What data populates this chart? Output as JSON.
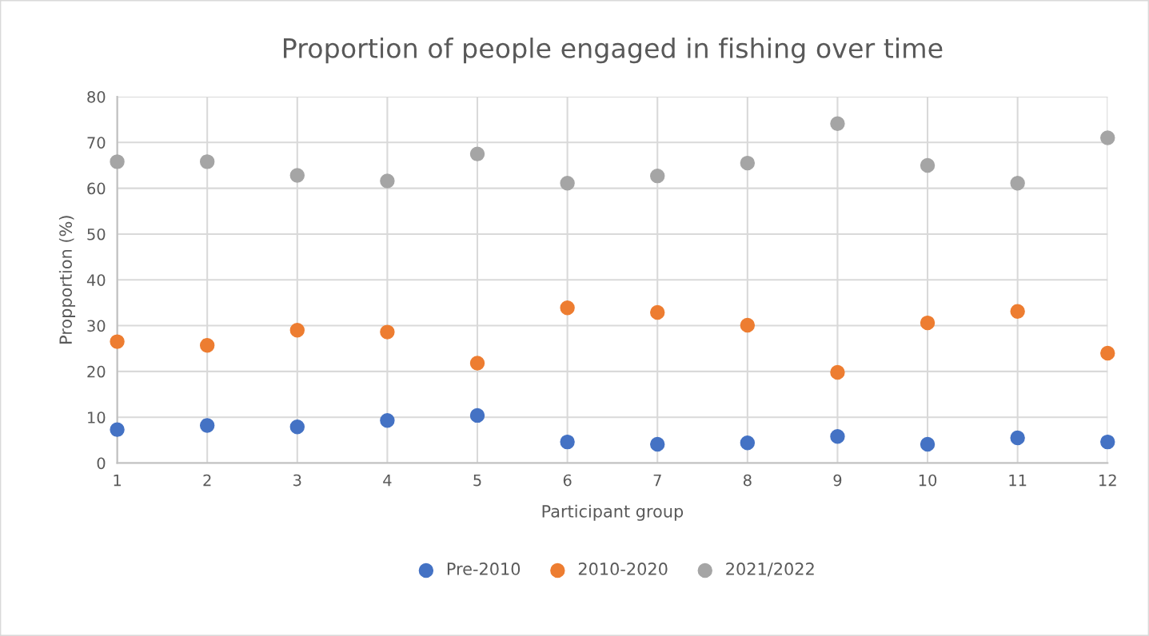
{
  "chart_data": {
    "type": "scatter",
    "title": "Proportion of people engaged in fishing over time",
    "xlabel": "Participant group",
    "ylabel": "Propportion (%)",
    "x": [
      1,
      2,
      3,
      4,
      5,
      6,
      7,
      8,
      9,
      10,
      11,
      12
    ],
    "series": [
      {
        "name": "Pre-2010",
        "color": "#4472c4",
        "values": [
          7.3,
          8.2,
          7.9,
          9.3,
          10.4,
          4.6,
          4.1,
          4.4,
          5.8,
          4.1,
          5.5,
          4.6
        ]
      },
      {
        "name": "2010-2020",
        "color": "#ed7d31",
        "values": [
          26.5,
          25.7,
          29.0,
          28.6,
          21.8,
          33.9,
          32.9,
          30.1,
          19.8,
          30.6,
          33.1,
          24.0
        ]
      },
      {
        "name": "2021/2022",
        "color": "#a5a5a5",
        "values": [
          65.8,
          65.8,
          62.8,
          61.6,
          67.5,
          61.1,
          62.7,
          65.5,
          74.1,
          65.0,
          61.1,
          71.0
        ]
      }
    ],
    "xlim": [
      1,
      12
    ],
    "xticks": [
      1,
      2,
      3,
      4,
      5,
      6,
      7,
      8,
      9,
      10,
      11,
      12
    ],
    "ylim": [
      0,
      80
    ],
    "yticks": [
      0,
      10,
      20,
      30,
      40,
      50,
      60,
      70,
      80
    ],
    "grid": true,
    "legend": "bottom",
    "marker": "circle"
  }
}
